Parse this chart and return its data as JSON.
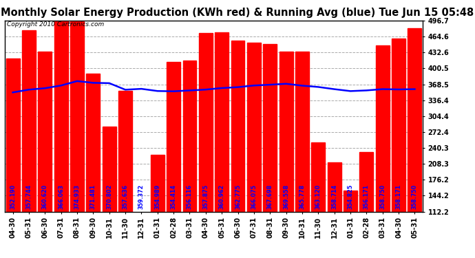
{
  "title": "Monthly Solar Energy Production (KWh red) & Running Avg (blue) Tue Jun 15 05:48",
  "copyright": "Copyright 2010 Cartronics.com",
  "categories": [
    "04-30",
    "05-31",
    "06-30",
    "07-31",
    "08-31",
    "09-30",
    "10-31",
    "11-30",
    "12-31",
    "01-31",
    "02-28",
    "03-31",
    "04-30",
    "05-31",
    "06-30",
    "07-31",
    "08-31",
    "09-30",
    "10-31",
    "11-30",
    "12-31",
    "01-31",
    "02-28",
    "03-31",
    "04-30",
    "05-31"
  ],
  "bar_values": [
    421.0,
    477.0,
    435.0,
    497.0,
    497.0,
    390.0,
    284.0,
    356.0,
    96.0,
    226.0,
    414.0,
    416.0,
    472.0,
    473.0,
    456.0,
    453.0,
    450.0,
    435.0,
    434.0,
    252.0,
    211.0,
    154.0,
    232.0,
    447.0,
    460.0,
    481.0
  ],
  "running_avg": [
    352.19,
    357.744,
    360.62,
    366.063,
    374.933,
    371.481,
    370.802,
    357.636,
    359.372,
    354.989,
    354.414,
    356.116,
    357.875,
    360.962,
    362.775,
    366.075,
    367.698,
    369.558,
    365.778,
    363.12,
    358.714,
    354.825,
    356.171,
    358.75,
    358.171,
    358.75
  ],
  "bar_color": "#ff0000",
  "line_color": "#0000ff",
  "bg_color": "#ffffff",
  "plot_bg_color": "#ffffff",
  "grid_color": "#aaaaaa",
  "ylim_min": 112.2,
  "ylim_max": 496.7,
  "yticks": [
    112.2,
    144.2,
    176.2,
    208.3,
    240.3,
    272.4,
    304.4,
    336.4,
    368.5,
    400.5,
    432.6,
    464.6,
    496.7
  ],
  "title_fontsize": 10.5,
  "copyright_fontsize": 6.5,
  "tick_fontsize": 7,
  "label_fontsize": 5.8,
  "bar_width": 0.85
}
